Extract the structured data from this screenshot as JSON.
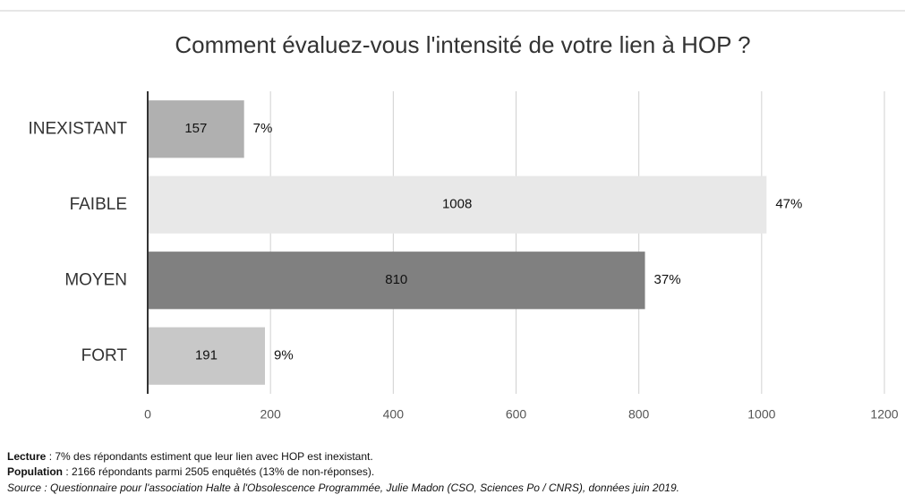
{
  "chart_data": {
    "type": "hbar",
    "title": "Comment évaluez-vous l'intensité de votre lien à HOP ?",
    "categories": [
      "INEXISTANT",
      "FAIBLE",
      "MOYEN",
      "FORT"
    ],
    "values": [
      157,
      1008,
      810,
      191
    ],
    "percent_labels": [
      "7%",
      "47%",
      "37%",
      "9%"
    ],
    "colors": [
      "#b0b0b0",
      "#e8e8e8",
      "#808080",
      "#c8c8c8"
    ],
    "xlim": [
      0,
      1200
    ],
    "xticks": [
      0,
      200,
      400,
      600,
      800,
      1000,
      1200
    ],
    "grid": true
  },
  "footer": {
    "lines": [
      {
        "label": "Lecture",
        "text": " : 7% des répondants estiment que leur lien avec HOP est inexistant."
      },
      {
        "label": "Population",
        "text": " : 2166 répondants parmi 2505 enquêtés (13% de non-réponses)."
      },
      {
        "text": "Source : Questionnaire pour l'association Halte à l'Obsolescence Programmée, Julie Madon (CSO, Sciences Po / CNRS), données juin 2019."
      }
    ]
  }
}
